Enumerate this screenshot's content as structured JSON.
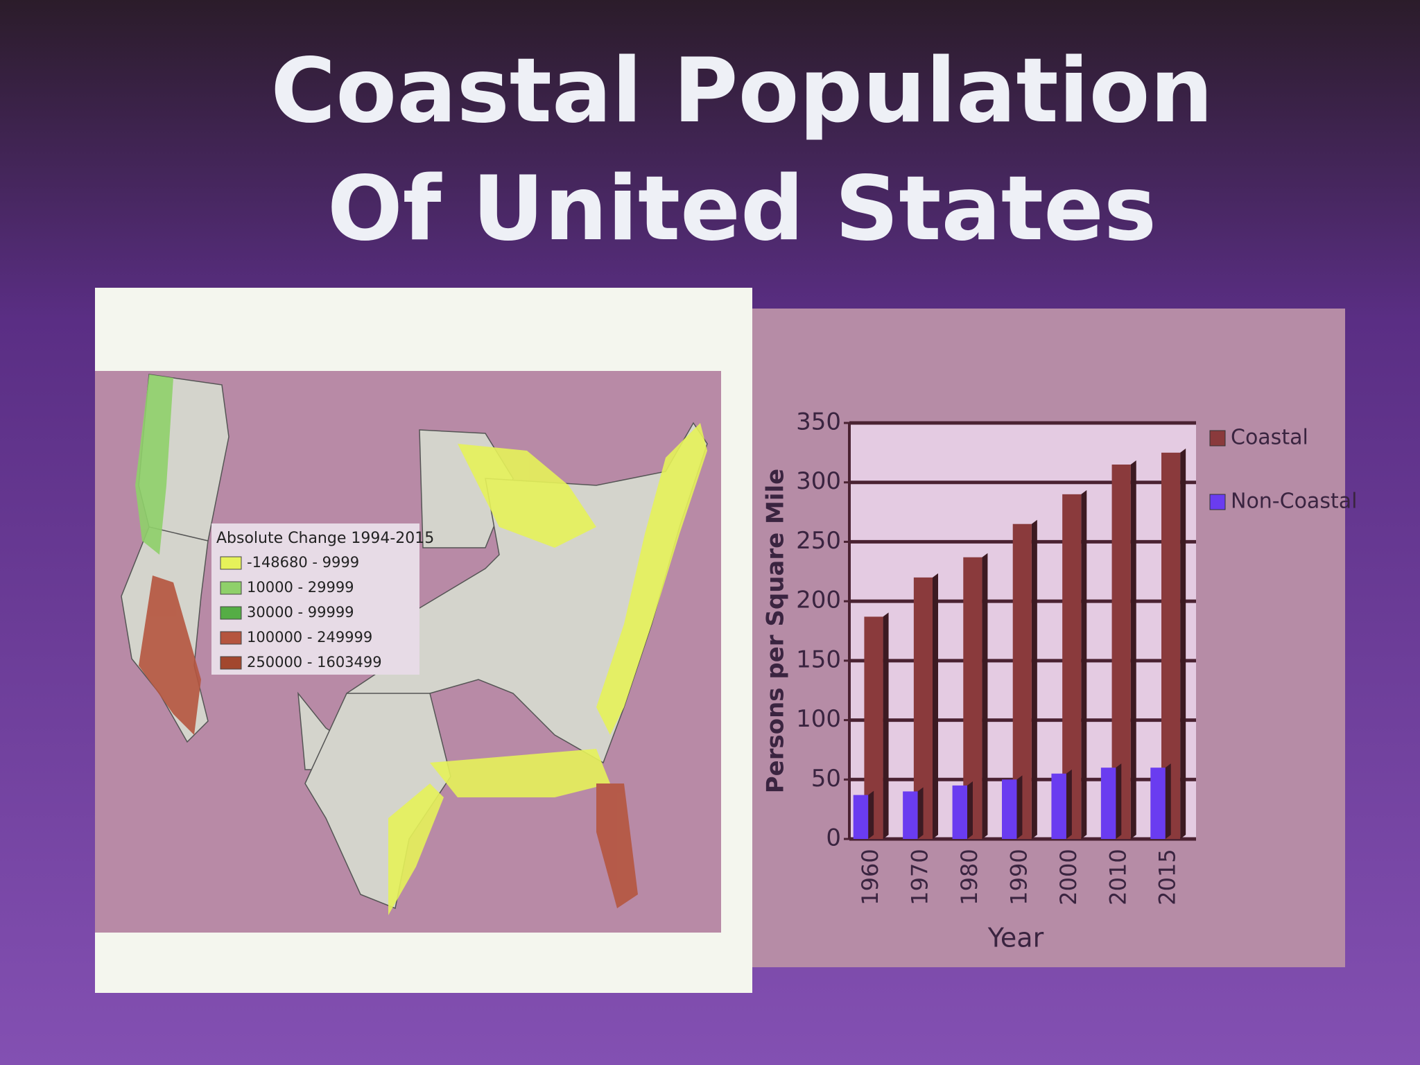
{
  "slide": {
    "title_lines": [
      "Coastal Population",
      "Of United States"
    ]
  },
  "map": {
    "legend_title": "Absolute Change 1994-2015",
    "legend": [
      {
        "label": "-148680 - 9999",
        "color": "#e6f25a"
      },
      {
        "label": "10000 - 29999",
        "color": "#8fd06a"
      },
      {
        "label": "30000 - 99999",
        "color": "#55ad45"
      },
      {
        "label": "100000 - 249999",
        "color": "#b5553f"
      },
      {
        "label": "250000 - 1603499",
        "color": "#a2472e"
      }
    ]
  },
  "chart_data": {
    "type": "bar",
    "x_label": "Year",
    "y_label": "Persons per Square Mile",
    "categories": [
      "1960",
      "1970",
      "1980",
      "1990",
      "2000",
      "2010",
      "2015"
    ],
    "series": [
      {
        "name": "Coastal",
        "color": "#8a3a3c",
        "values": [
          187,
          220,
          237,
          265,
          290,
          315,
          325
        ]
      },
      {
        "name": "Non-Coastal",
        "color": "#6a3cf0",
        "values": [
          37,
          40,
          45,
          50,
          55,
          60,
          60
        ]
      }
    ],
    "ylim": [
      0,
      350
    ],
    "yticks": [
      0,
      50,
      100,
      150,
      200,
      250,
      300,
      350
    ],
    "grid": true
  }
}
